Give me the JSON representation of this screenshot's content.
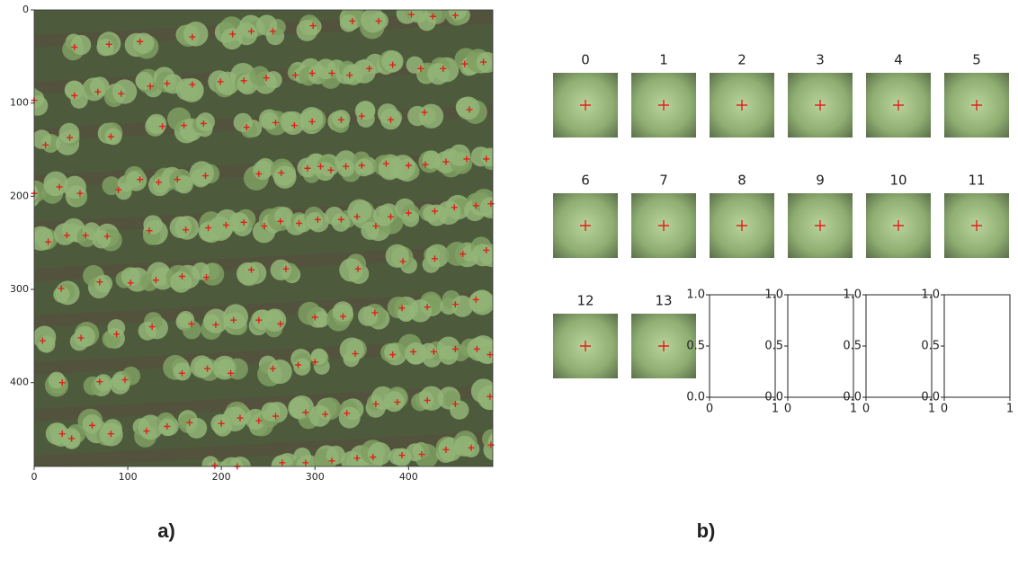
{
  "chart_data": [
    {
      "type": "scatter",
      "color": "#e0201c",
      "x": [
        298,
        340,
        368,
        403,
        426,
        450,
        43,
        80,
        113,
        169,
        212,
        232,
        255,
        43,
        68,
        93,
        124,
        142,
        169,
        199,
        224,
        248,
        279,
        297,
        318,
        337,
        358,
        383,
        413,
        437,
        460,
        480,
        0,
        12,
        38,
        82,
        137,
        160,
        181,
        227,
        258,
        278,
        297,
        328,
        350,
        381,
        417,
        465,
        0,
        27,
        49,
        90,
        113,
        133,
        153,
        183,
        240,
        264,
        292,
        306,
        317,
        333,
        350,
        376,
        400,
        418,
        440,
        462,
        483,
        15,
        35,
        55,
        78,
        123,
        162,
        186,
        205,
        224,
        246,
        263,
        283,
        303,
        328,
        345,
        365,
        381,
        400,
        428,
        449,
        472,
        488,
        29,
        70,
        103,
        130,
        158,
        184,
        232,
        269,
        346,
        394,
        428,
        458,
        483,
        9,
        50,
        88,
        126,
        168,
        194,
        213,
        240,
        263,
        300,
        330,
        364,
        393,
        420,
        450,
        472,
        30,
        70,
        97,
        158,
        185,
        210,
        255,
        282,
        300,
        343,
        383,
        405,
        427,
        450,
        473,
        487,
        30,
        40,
        62,
        82,
        120,
        142,
        166,
        200,
        220,
        240,
        258,
        290,
        311,
        334,
        365,
        388,
        420,
        450,
        487,
        193,
        217,
        265,
        290,
        318,
        345,
        362,
        393,
        414,
        440,
        467,
        488
      ],
      "y": [
        17,
        12,
        12,
        5,
        7,
        6,
        40,
        37,
        34,
        29,
        26,
        23,
        23,
        92,
        88,
        90,
        82,
        79,
        80,
        77,
        76,
        73,
        70,
        68,
        68,
        70,
        63,
        59,
        63,
        63,
        58,
        56,
        97,
        145,
        137,
        136,
        125,
        124,
        122,
        126,
        121,
        124,
        120,
        118,
        114,
        118,
        110,
        107,
        197,
        190,
        197,
        193,
        182,
        185,
        182,
        178,
        176,
        175,
        170,
        168,
        172,
        168,
        167,
        165,
        167,
        166,
        163,
        160,
        160,
        249,
        242,
        242,
        243,
        237,
        236,
        234,
        231,
        228,
        232,
        227,
        229,
        225,
        225,
        222,
        232,
        222,
        218,
        216,
        212,
        210,
        208,
        299,
        292,
        293,
        290,
        286,
        287,
        279,
        278,
        278,
        270,
        267,
        262,
        258,
        355,
        352,
        348,
        340,
        337,
        338,
        333,
        333,
        337,
        330,
        329,
        325,
        320,
        319,
        316,
        311,
        400,
        399,
        397,
        390,
        385,
        390,
        385,
        381,
        378,
        369,
        370,
        367,
        367,
        364,
        364,
        370,
        455,
        460,
        446,
        455,
        452,
        447,
        443,
        444,
        438,
        441,
        436,
        432,
        434,
        433,
        423,
        421,
        419,
        423,
        415,
        489,
        490,
        486,
        486,
        484,
        481,
        480,
        478,
        477,
        472,
        470,
        467
      ],
      "xlim": [
        0,
        490
      ],
      "ylim": [
        490,
        0
      ],
      "xticks": [
        0,
        100,
        200,
        300,
        400
      ],
      "yticks": [
        0,
        100,
        200,
        300,
        400
      ]
    },
    {
      "type": "image-grid",
      "titles": [
        "0",
        "1",
        "2",
        "3",
        "4",
        "5",
        "6",
        "7",
        "8",
        "9",
        "10",
        "11",
        "12",
        "13"
      ]
    },
    {
      "type": "empty",
      "xlim": [
        0,
        1
      ],
      "ylim": [
        0,
        1
      ],
      "xticks": [
        0,
        1
      ],
      "yticks": [
        {
          "value": 0,
          "label": "0.0"
        },
        {
          "value": 0.5,
          "label": "0.5"
        },
        {
          "value": 1,
          "label": "1.0"
        }
      ]
    },
    {
      "type": "empty",
      "xlim": [
        0,
        1
      ],
      "ylim": [
        0,
        1
      ],
      "xticks": [
        0,
        1
      ],
      "yticks": [
        {
          "value": 0,
          "label": "0.0"
        },
        {
          "value": 0.5,
          "label": "0.5"
        },
        {
          "value": 1,
          "label": "1.0"
        }
      ]
    },
    {
      "type": "empty",
      "xlim": [
        0,
        1
      ],
      "ylim": [
        0,
        1
      ],
      "xticks": [
        0,
        1
      ],
      "yticks": [
        {
          "value": 0,
          "label": "0.0"
        },
        {
          "value": 0.5,
          "label": "0.5"
        },
        {
          "value": 1,
          "label": "1.0"
        }
      ]
    },
    {
      "type": "empty",
      "xlim": [
        0,
        1
      ],
      "ylim": [
        0,
        1
      ],
      "xticks": [
        0,
        1
      ],
      "yticks": [
        {
          "value": 0,
          "label": "0.0"
        },
        {
          "value": 0.5,
          "label": "0.5"
        },
        {
          "value": 1,
          "label": "1.0"
        }
      ]
    }
  ],
  "captions": [
    "a)",
    "b)"
  ]
}
